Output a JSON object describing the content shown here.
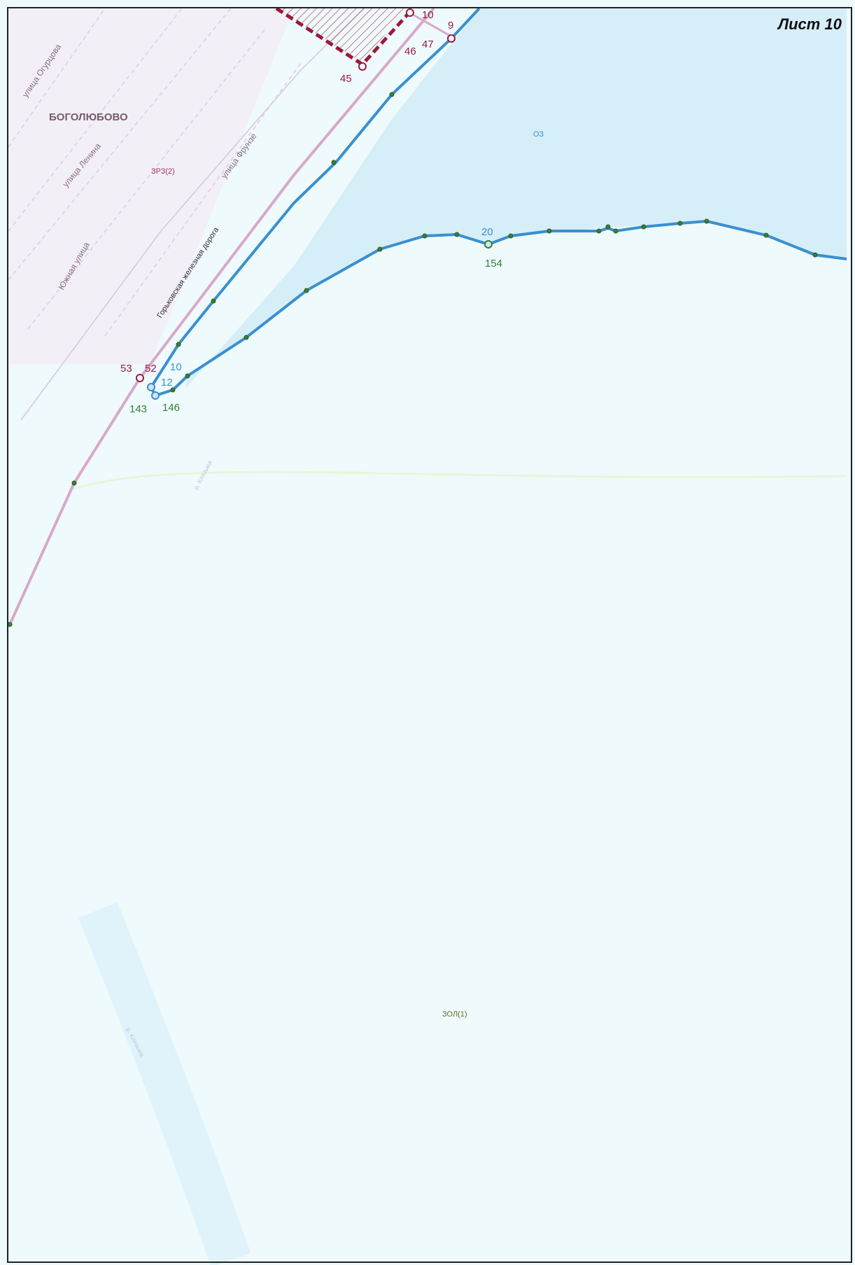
{
  "sheet_label": "Лист 10",
  "settlement": "БОГОЛЮБОВО",
  "streets": {
    "ogurtsova": "улица Огурцова",
    "lenina": "улица Ленина",
    "frunze": "улица Фрунзе",
    "yuzhnaya": "Южная улица",
    "railway": "Горьковская железная дорога"
  },
  "zones": {
    "ozera": "ОЗ",
    "residential": "ЗРЗ(2)",
    "landscape": "ЗОЛ(1)"
  },
  "rivers": {
    "upper": "р. Клязьма",
    "lower": "р. Клязьма"
  },
  "points_maroon": [
    "10",
    "9",
    "46",
    "47",
    "45",
    "53",
    "52"
  ],
  "points_blue": [
    "10",
    "12",
    "20"
  ],
  "points_green": [
    "143",
    "146",
    "154"
  ],
  "colors": {
    "boundary_blue": "#3a8fd0",
    "protected_zone": "#9b1a3c",
    "railway_pink": "#d9a8cc",
    "water_fill": "#d6eef8",
    "background": "#eefafc"
  }
}
